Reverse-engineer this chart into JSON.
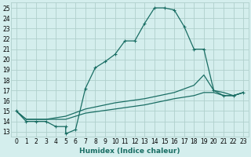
{
  "xlabel": "Humidex (Indice chaleur)",
  "background_color": "#d4eeed",
  "grid_color": "#b0d0cc",
  "line_color": "#1a6e64",
  "xlim": [
    -0.5,
    23.5
  ],
  "ylim": [
    12.5,
    25.5
  ],
  "xticks": [
    0,
    1,
    2,
    3,
    4,
    5,
    6,
    7,
    8,
    9,
    10,
    11,
    12,
    13,
    14,
    15,
    16,
    17,
    18,
    19,
    20,
    21,
    22,
    23
  ],
  "yticks": [
    13,
    14,
    15,
    16,
    17,
    18,
    19,
    20,
    21,
    22,
    23,
    24,
    25
  ],
  "line1_x": [
    0,
    1,
    2,
    3,
    4,
    5,
    5,
    6,
    7,
    8,
    9,
    10,
    11,
    12,
    13,
    14,
    15,
    16,
    17,
    18,
    19,
    20,
    21,
    22,
    23
  ],
  "line1_y": [
    15,
    14,
    14,
    14,
    13.5,
    13.5,
    12.8,
    13.2,
    17.2,
    19.2,
    19.8,
    20.5,
    21.8,
    21.8,
    23.5,
    25.0,
    25.0,
    24.8,
    23.2,
    21.0,
    21.0,
    17.0,
    16.5,
    16.5,
    16.8
  ],
  "line2_x": [
    0,
    1,
    3,
    5,
    7,
    10,
    13,
    16,
    18,
    19,
    20,
    21,
    22,
    23
  ],
  "line2_y": [
    15,
    14.2,
    14.2,
    14.5,
    15.2,
    15.8,
    16.2,
    16.8,
    17.5,
    18.5,
    17.0,
    16.8,
    16.5,
    16.8
  ],
  "line3_x": [
    0,
    1,
    3,
    5,
    7,
    10,
    13,
    16,
    18,
    19,
    20,
    21,
    22,
    23
  ],
  "line3_y": [
    15,
    14.2,
    14.2,
    14.2,
    14.8,
    15.2,
    15.6,
    16.2,
    16.5,
    16.8,
    16.8,
    16.5,
    16.5,
    16.8
  ]
}
